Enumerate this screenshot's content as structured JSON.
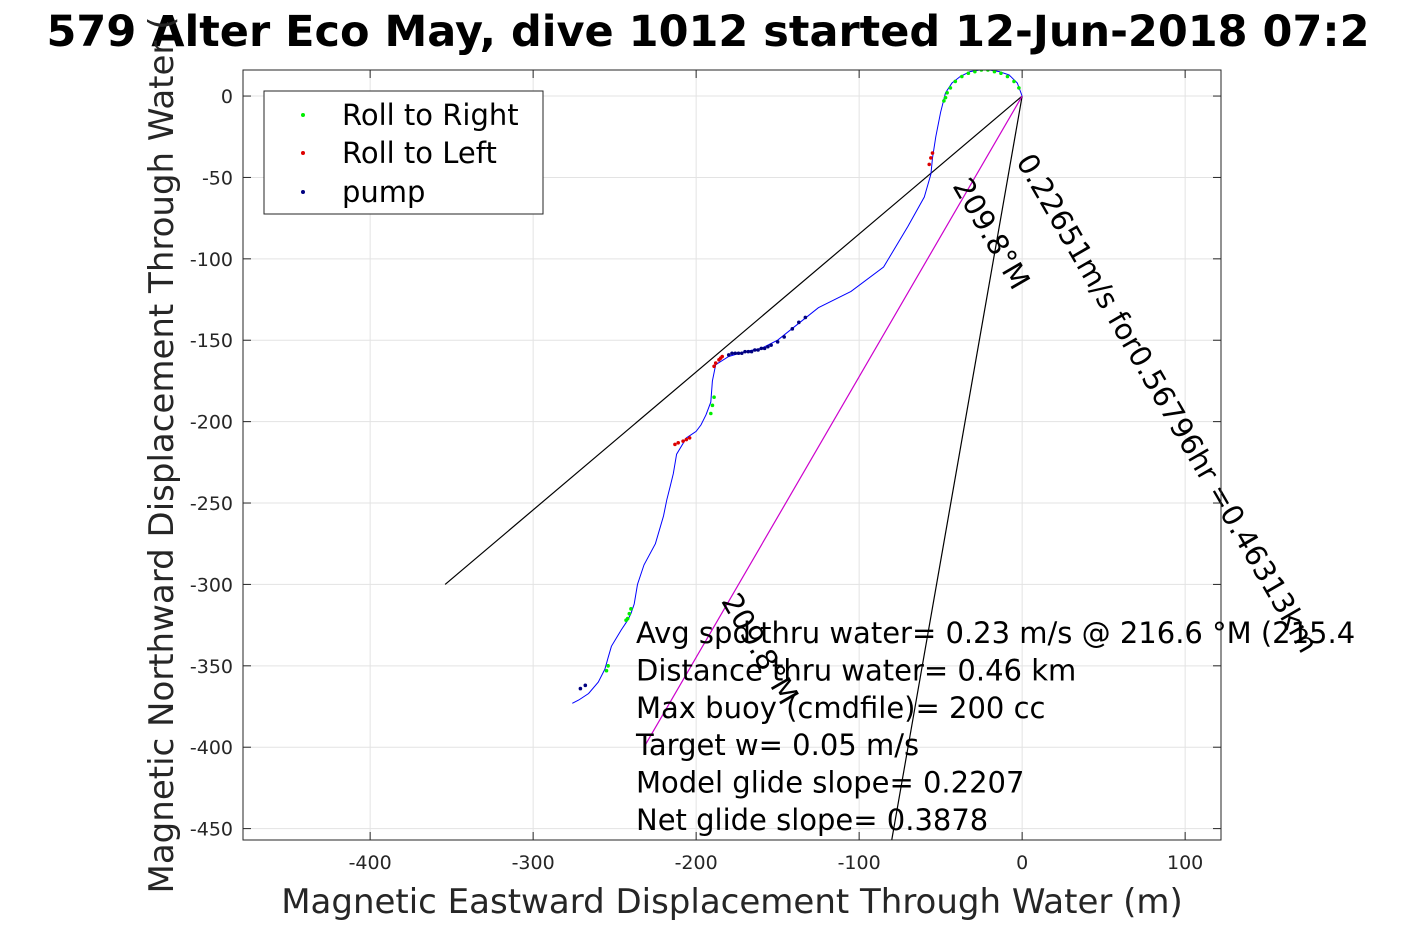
{
  "chart_data": {
    "type": "scatter",
    "title": "579 Alter Eco May, dive 1012 started 12-Jun-2018 07:2",
    "xlabel": "Magnetic Eastward Displacement Through Water (m)",
    "ylabel": "Magnetic Northward Displacement Through Water (",
    "xlim": [
      -478,
      122
    ],
    "ylim": [
      -457,
      16
    ],
    "xticks": [
      -400,
      -300,
      -200,
      -100,
      0,
      100
    ],
    "yticks": [
      0,
      -50,
      -100,
      -150,
      -200,
      -250,
      -300,
      -350,
      -400,
      -450
    ],
    "grid": true,
    "legend_position": "top-left",
    "legend": [
      {
        "label": "Roll to Right",
        "color": "#00ee00"
      },
      {
        "label": "Roll to Left",
        "color": "#dd0000"
      },
      {
        "label": "pump",
        "color": "#000080"
      }
    ],
    "track": {
      "color": "#0000ff",
      "x": [
        0,
        -3,
        -8,
        -14,
        -20,
        -26,
        -32,
        -38,
        -43,
        -47,
        -48,
        -50,
        -53,
        -55,
        -56,
        -60,
        -70,
        -85,
        -105,
        -125,
        -140,
        -150,
        -160,
        -170,
        -180,
        -188,
        -190,
        -191,
        -194,
        -197,
        -200,
        -206,
        -212,
        -214,
        -216,
        -218,
        -220,
        -225,
        -232,
        -236,
        -238,
        -240,
        -242,
        -246,
        -252,
        -254,
        -256,
        -260,
        -266,
        -272,
        -276
      ],
      "y": [
        0,
        8,
        13,
        15,
        16,
        16,
        15,
        12,
        8,
        2,
        -2,
        -10,
        -25,
        -38,
        -48,
        -62,
        -80,
        -105,
        -120,
        -130,
        -142,
        -150,
        -155,
        -157,
        -160,
        -165,
        -175,
        -188,
        -196,
        -202,
        -206,
        -210,
        -220,
        -232,
        -240,
        -248,
        -258,
        -275,
        -288,
        -300,
        -312,
        -318,
        -322,
        -328,
        -338,
        -345,
        -352,
        -360,
        -367,
        -371,
        -373
      ]
    },
    "series": [
      {
        "name": "Roll to Right",
        "color": "#00ee00",
        "x": [
          -2,
          -5,
          -9,
          -13,
          -17,
          -21,
          -25,
          -29,
          -33,
          -37,
          -41,
          -44,
          -46,
          -47,
          -48,
          -189,
          -190,
          -191,
          -240,
          -241,
          -242,
          -243,
          -254,
          -255
        ],
        "y": [
          5,
          9,
          12,
          14,
          15,
          16,
          16,
          15,
          14,
          12,
          9,
          5,
          2,
          -1,
          -3,
          -185,
          -190,
          -195,
          -315,
          -318,
          -321,
          -322,
          -350,
          -353
        ]
      },
      {
        "name": "Roll to Left",
        "color": "#dd0000",
        "x": [
          -55,
          -56,
          -57,
          -184,
          -185,
          -186,
          -188,
          -189,
          -204,
          -206,
          -208,
          -211,
          -213
        ],
        "y": [
          -35,
          -38,
          -42,
          -160,
          -161,
          -162,
          -164,
          -166,
          -210,
          -211,
          -212,
          -213,
          -214
        ]
      },
      {
        "name": "pump",
        "color": "#000080",
        "x": [
          -133,
          -137,
          -141,
          -146,
          -150,
          -154,
          -156,
          -158,
          -160,
          -162,
          -164,
          -166,
          -168,
          -170,
          -172,
          -174,
          -176,
          -178,
          -180,
          -268,
          -271
        ],
        "y": [
          -136,
          -139,
          -143,
          -148,
          -151,
          -153,
          -154,
          -155,
          -155,
          -156,
          -156,
          -157,
          -157,
          -157,
          -158,
          -158,
          -158,
          -158,
          -159,
          -362,
          -364
        ]
      }
    ],
    "reference_lines": [
      {
        "name": "line-a",
        "color": "#000000",
        "x": [
          0,
          -354
        ],
        "y": [
          0,
          -300
        ]
      },
      {
        "name": "line-b",
        "color": "#000000",
        "x": [
          0,
          -80
        ],
        "y": [
          0,
          -457
        ]
      },
      {
        "name": "line-c",
        "color": "#cc00cc",
        "x": [
          0,
          -232
        ],
        "y": [
          0,
          -400
        ]
      }
    ],
    "rotated_labels": [
      {
        "text": "0.22651m/s for0.56796hr =0.46313km",
        "x": -4,
        "y": -40,
        "angle": 59.9
      },
      {
        "text": "209.8°M",
        "x": -43,
        "y": -55,
        "angle": 59.9
      },
      {
        "text": "209.8°M",
        "x": -185,
        "y": -310,
        "angle": 59.9
      }
    ],
    "annotations": [
      "Avg spd thru water=  0.23 m/s @ 216.6 °M (215.4",
      "Distance thru water=  0.46 km",
      "Max buoy (cmdfile)= 200 cc",
      "Target w= 0.05 m/s",
      "Model glide slope= 0.2207",
      "Net glide slope= 0.3878"
    ]
  }
}
